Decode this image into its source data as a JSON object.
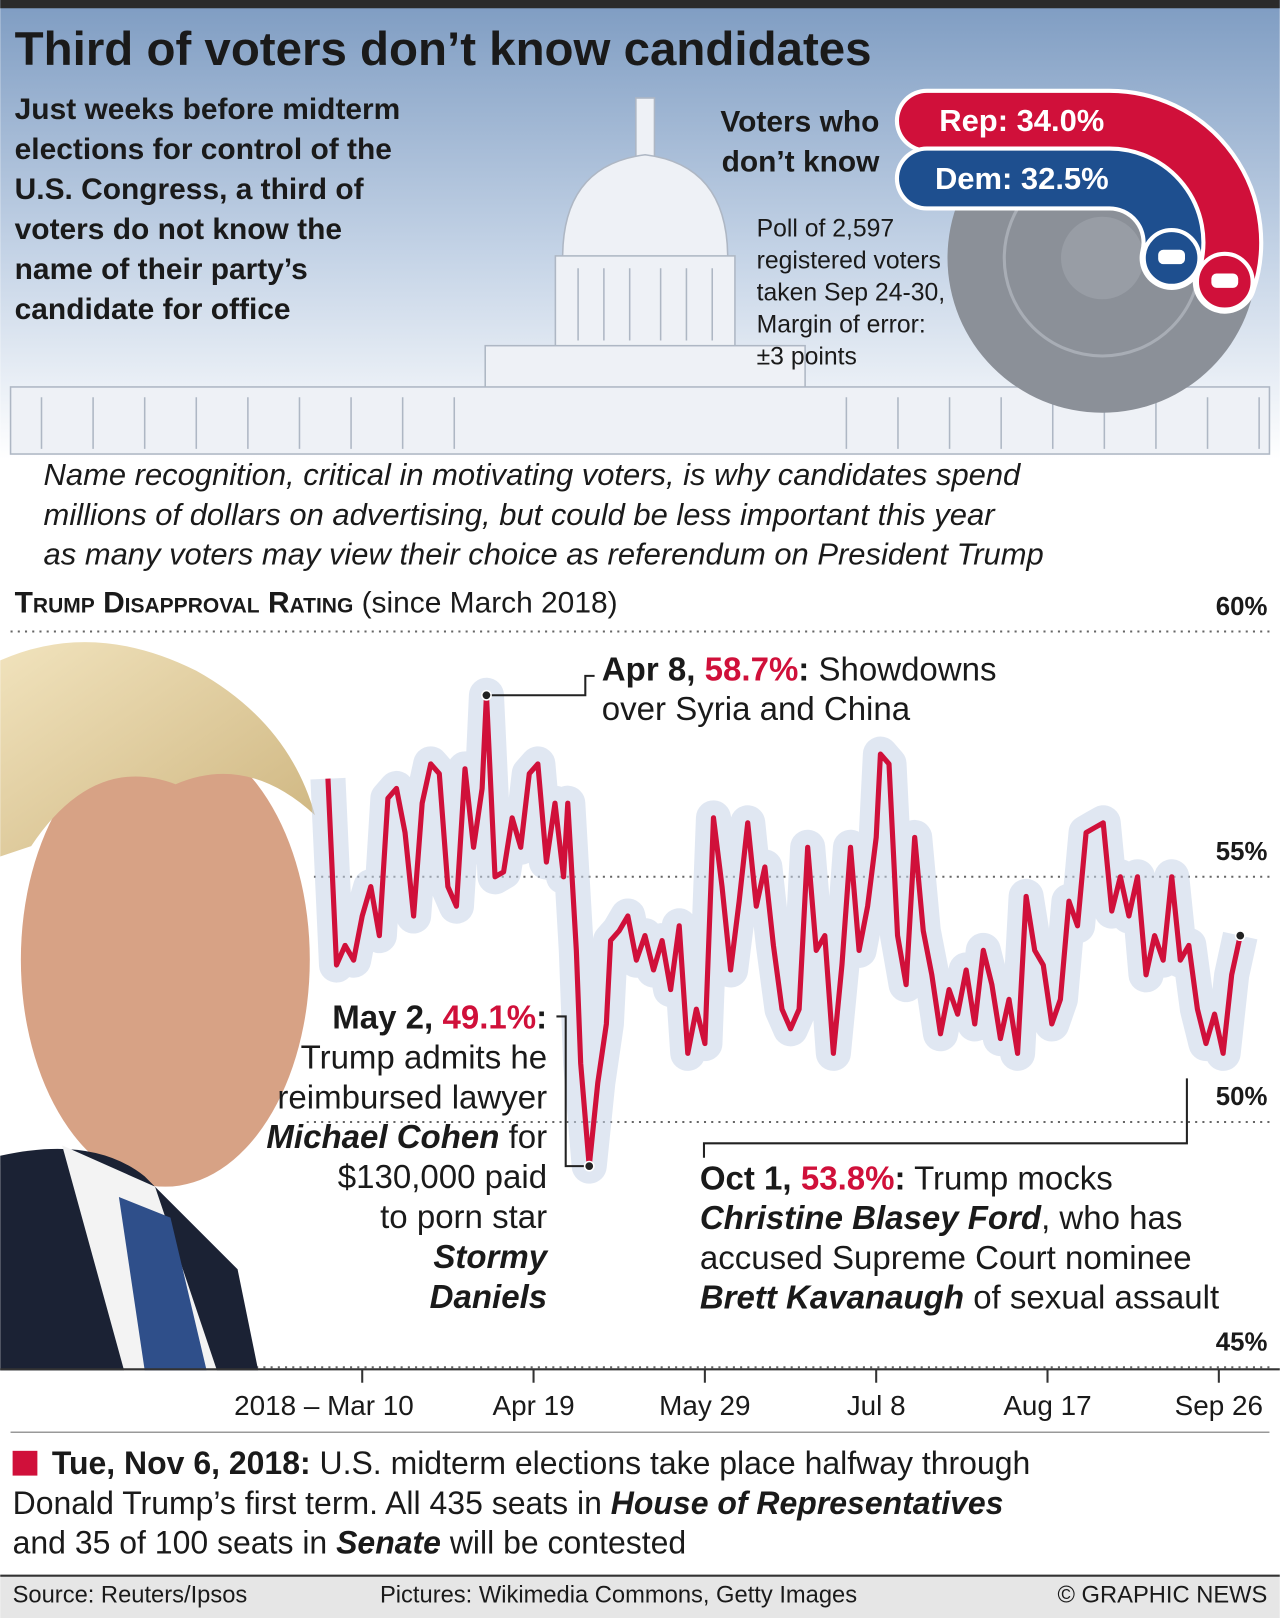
{
  "header": {
    "title": "Third of voters don’t know candidates",
    "subtitle_lines": [
      "Just weeks before midterm",
      "elections for control of the",
      "U.S. Congress, a third of",
      "voters do not know the",
      "name of their party’s",
      "candidate for office"
    ]
  },
  "intro_lines": [
    "Name recognition, critical in motivating voters, is why candidates spend",
    "millions of dollars on advertising, but could be less important this year",
    "as many voters may view their choice as referendum on President Trump"
  ],
  "chart_data": [
    {
      "type": "radial-bar",
      "title_lines": [
        "Voters who",
        "don’t know"
      ],
      "values": [
        34.0,
        32.5
      ],
      "value_labels": [
        "Rep: 34.0%",
        "Dem: 32.5%"
      ],
      "colors": [
        "#d0103a",
        "#1e4f8f"
      ],
      "note_lines": [
        "Poll of 2,597",
        "registered voters",
        "taken Sep 24-30,",
        "Margin of error:",
        "±3 points"
      ]
    },
    {
      "type": "line",
      "title": "Trump Disapproval Rating",
      "subtitle": "(since March 2018)",
      "color": "#d0103a",
      "grid": true,
      "x": [
        "2018-03-02",
        "2018-03-04",
        "2018-03-06",
        "2018-03-08",
        "2018-03-10",
        "2018-03-12",
        "2018-03-14",
        "2018-03-16",
        "2018-03-18",
        "2018-03-20",
        "2018-03-22",
        "2018-03-24",
        "2018-03-26",
        "2018-03-28",
        "2018-03-30",
        "2018-04-01",
        "2018-04-03",
        "2018-04-05",
        "2018-04-07",
        "2018-04-08",
        "2018-04-10",
        "2018-04-12",
        "2018-04-14",
        "2018-04-16",
        "2018-04-18",
        "2018-04-20",
        "2018-04-22",
        "2018-04-24",
        "2018-04-26",
        "2018-04-27",
        "2018-04-29",
        "2018-04-30",
        "2018-05-02",
        "2018-05-04",
        "2018-05-06",
        "2018-05-07",
        "2018-05-09",
        "2018-05-11",
        "2018-05-13",
        "2018-05-15",
        "2018-05-17",
        "2018-05-19",
        "2018-05-21",
        "2018-05-23",
        "2018-05-25",
        "2018-05-27",
        "2018-05-29",
        "2018-05-31",
        "2018-06-02",
        "2018-06-04",
        "2018-06-06",
        "2018-06-08",
        "2018-06-10",
        "2018-06-12",
        "2018-06-14",
        "2018-06-16",
        "2018-06-18",
        "2018-06-20",
        "2018-06-22",
        "2018-06-24",
        "2018-06-26",
        "2018-06-28",
        "2018-06-30",
        "2018-07-02",
        "2018-07-04",
        "2018-07-06",
        "2018-07-08",
        "2018-07-09",
        "2018-07-11",
        "2018-07-13",
        "2018-07-15",
        "2018-07-17",
        "2018-07-19",
        "2018-07-21",
        "2018-07-23",
        "2018-07-25",
        "2018-07-27",
        "2018-07-29",
        "2018-07-31",
        "2018-08-02",
        "2018-08-04",
        "2018-08-06",
        "2018-08-08",
        "2018-08-10",
        "2018-08-12",
        "2018-08-14",
        "2018-08-16",
        "2018-08-18",
        "2018-08-20",
        "2018-08-22",
        "2018-08-24",
        "2018-08-26",
        "2018-08-28",
        "2018-08-30",
        "2018-09-01",
        "2018-09-03",
        "2018-09-05",
        "2018-09-07",
        "2018-09-09",
        "2018-09-11",
        "2018-09-13",
        "2018-09-15",
        "2018-09-17",
        "2018-09-19",
        "2018-09-21",
        "2018-09-23",
        "2018-09-25",
        "2018-09-27",
        "2018-09-29",
        "2018-10-01"
      ],
      "values": [
        57.0,
        53.2,
        53.6,
        53.3,
        54.2,
        54.8,
        53.8,
        56.6,
        56.8,
        55.9,
        54.2,
        56.5,
        57.3,
        57.1,
        54.8,
        54.4,
        57.2,
        55.6,
        56.8,
        58.7,
        55.0,
        55.1,
        56.2,
        55.6,
        57.1,
        57.3,
        55.3,
        56.5,
        55.0,
        56.5,
        53.5,
        51.2,
        49.1,
        50.8,
        52.0,
        53.7,
        53.9,
        54.2,
        53.3,
        53.8,
        53.1,
        53.7,
        52.7,
        54.0,
        51.4,
        52.3,
        51.6,
        56.2,
        54.8,
        53.1,
        54.5,
        56.1,
        54.4,
        55.2,
        53.6,
        52.3,
        51.9,
        52.3,
        55.6,
        53.5,
        53.8,
        51.4,
        53.2,
        55.6,
        53.5,
        54.4,
        55.8,
        57.5,
        57.3,
        53.8,
        52.8,
        55.8,
        53.9,
        53.0,
        51.8,
        52.7,
        52.2,
        53.1,
        52.0,
        53.5,
        52.8,
        51.7,
        52.5,
        51.4,
        54.6,
        53.5,
        53.2,
        52.0,
        52.5,
        54.5,
        54.0,
        55.9,
        56.0,
        56.1,
        54.3,
        55.0,
        54.2,
        55.0,
        53.0,
        53.8,
        53.3,
        55.0,
        53.3,
        53.6,
        52.3,
        51.6,
        52.2,
        51.4,
        53.0,
        53.8
      ],
      "xlim": [
        "2018-02-26",
        "2018-10-03"
      ],
      "xticks": [
        {
          "value": "2018-03-10",
          "label": "2018 – Mar 10"
        },
        {
          "value": "2018-04-19",
          "label": "Apr 19"
        },
        {
          "value": "2018-05-29",
          "label": "May 29"
        },
        {
          "value": "2018-07-08",
          "label": "Jul 8"
        },
        {
          "value": "2018-08-17",
          "label": "Aug 17"
        },
        {
          "value": "2018-09-26",
          "label": "Sep 26"
        }
      ],
      "ylim": [
        45,
        60
      ],
      "yticks": [
        {
          "value": 60,
          "label": "60%"
        },
        {
          "value": 55,
          "label": "55%"
        },
        {
          "value": 50,
          "label": "50%"
        },
        {
          "value": 45,
          "label": "45%"
        }
      ],
      "annotations": [
        {
          "x": "2018-04-08",
          "value": 58.7,
          "date_label": "Apr 8,",
          "value_label": "58.7%",
          "lines": [
            [
              {
                "text": ":",
                "style": "bold"
              },
              {
                "text": " Showdowns"
              }
            ],
            [
              {
                "text": "over Syria and China"
              }
            ]
          ]
        },
        {
          "x": "2018-05-02",
          "value": 49.1,
          "date_label": "May 2,",
          "value_label": "49.1%",
          "lines": [
            [
              {
                "text": ":",
                "style": "bold"
              }
            ],
            [
              {
                "text": "Trump admits he"
              }
            ],
            [
              {
                "text": "reimbursed lawyer"
              }
            ],
            [
              {
                "text": "Michael Cohen",
                "style": "bold-italic"
              },
              {
                "text": " for"
              }
            ],
            [
              {
                "text": "$130,000 paid"
              }
            ],
            [
              {
                "text": "to porn star"
              }
            ],
            [
              {
                "text": "Stormy",
                "style": "bold-italic"
              }
            ],
            [
              {
                "text": "Daniels",
                "style": "bold-italic"
              }
            ]
          ]
        },
        {
          "x": "2018-10-01",
          "value": 53.8,
          "date_label": "Oct 1,",
          "value_label": "53.8%",
          "lines": [
            [
              {
                "text": ":",
                "style": "bold"
              },
              {
                "text": " Trump mocks"
              }
            ],
            [
              {
                "text": "Christine Blasey Ford",
                "style": "bold-italic"
              },
              {
                "text": ", who has"
              }
            ],
            [
              {
                "text": "accused Supreme Court nominee"
              }
            ],
            [
              {
                "text": "Brett Kavanaugh",
                "style": "bold-italic"
              },
              {
                "text": " of sexual assault"
              }
            ]
          ]
        }
      ]
    }
  ],
  "footer": {
    "note_lines": [
      [
        {
          "text": "Tue, Nov 6, 2018:",
          "style": "bold"
        },
        {
          "text": " U.S. midterm elections take place halfway through"
        }
      ],
      [
        {
          "text": "Donald Trump’s first term. All 435 seats in "
        },
        {
          "text": "House of Representatives",
          "style": "bold-italic"
        }
      ],
      [
        {
          "text": "and 35 of 100 seats in "
        },
        {
          "text": "Senate",
          "style": "bold-italic"
        },
        {
          "text": " will be contested"
        }
      ]
    ],
    "source": "Source: Reuters/Ipsos",
    "pictures": "Pictures: Wikimedia Commons, Getty Images",
    "credit": "© GRAPHIC NEWS"
  }
}
